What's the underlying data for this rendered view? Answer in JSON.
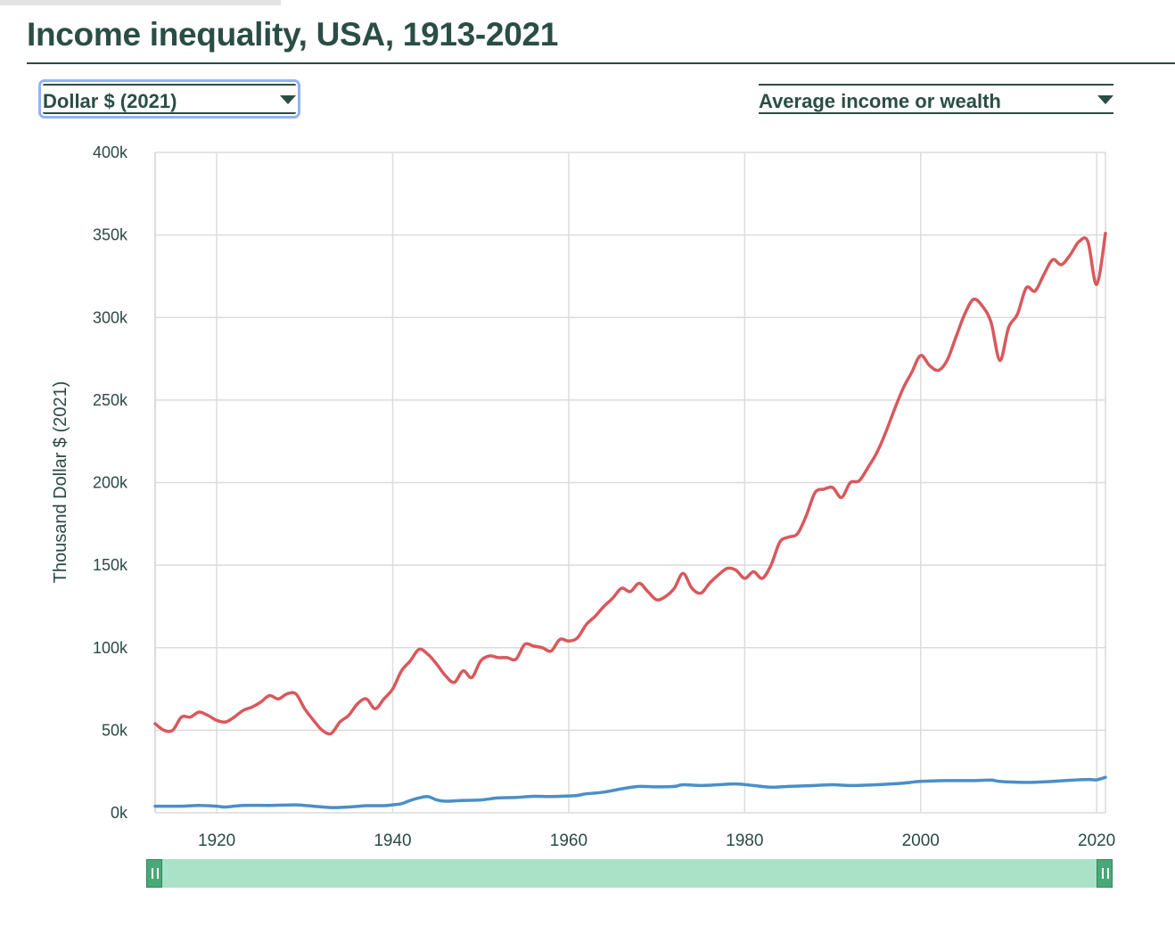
{
  "page": {
    "title": "Income inequality, USA, 1913-2021"
  },
  "controls": {
    "unit_select": {
      "value": "Dollar $ (2021)",
      "icon": "triangle-down-icon"
    },
    "measure_select": {
      "value": "Average income or wealth",
      "icon": "triangle-down-icon"
    }
  },
  "range_slider": {
    "start": 1913,
    "end": 2021
  },
  "chart_data": {
    "type": "line",
    "title": "Income inequality, USA, 1913-2021",
    "xlabel": "",
    "ylabel": "Thousand Dollar $ (2021)",
    "xlim": [
      1913,
      2021
    ],
    "ylim": [
      0,
      400000
    ],
    "x_ticks": [
      1920,
      1940,
      1960,
      1980,
      2000,
      2020
    ],
    "x_tick_labels": [
      "1920",
      "1940",
      "1960",
      "1980",
      "2000",
      "2020"
    ],
    "y_ticks": [
      0,
      50000,
      100000,
      150000,
      200000,
      250000,
      300000,
      350000,
      400000
    ],
    "y_tick_labels": [
      "0k",
      "50k",
      "100k",
      "150k",
      "200k",
      "250k",
      "300k",
      "350k",
      "400k"
    ],
    "grid": true,
    "legend": "none",
    "series": [
      {
        "color": "#d9585c",
        "points": [
          [
            1913,
            54000
          ],
          [
            1914,
            50000
          ],
          [
            1915,
            50000
          ],
          [
            1916,
            58000
          ],
          [
            1917,
            58000
          ],
          [
            1918,
            61000
          ],
          [
            1919,
            59000
          ],
          [
            1920,
            56000
          ],
          [
            1921,
            55000
          ],
          [
            1922,
            58000
          ],
          [
            1923,
            62000
          ],
          [
            1924,
            64000
          ],
          [
            1925,
            67000
          ],
          [
            1926,
            71000
          ],
          [
            1927,
            69000
          ],
          [
            1928,
            72000
          ],
          [
            1929,
            72000
          ],
          [
            1930,
            63000
          ],
          [
            1931,
            56000
          ],
          [
            1932,
            50000
          ],
          [
            1933,
            48000
          ],
          [
            1934,
            55000
          ],
          [
            1935,
            59000
          ],
          [
            1936,
            66000
          ],
          [
            1937,
            69000
          ],
          [
            1938,
            63000
          ],
          [
            1939,
            69000
          ],
          [
            1940,
            75000
          ],
          [
            1941,
            86000
          ],
          [
            1942,
            92000
          ],
          [
            1943,
            99000
          ],
          [
            1944,
            96000
          ],
          [
            1945,
            90000
          ],
          [
            1946,
            83000
          ],
          [
            1947,
            79000
          ],
          [
            1948,
            86000
          ],
          [
            1949,
            82000
          ],
          [
            1950,
            92000
          ],
          [
            1951,
            95000
          ],
          [
            1952,
            94000
          ],
          [
            1953,
            94000
          ],
          [
            1954,
            93000
          ],
          [
            1955,
            102000
          ],
          [
            1956,
            101000
          ],
          [
            1957,
            100000
          ],
          [
            1958,
            98000
          ],
          [
            1959,
            105000
          ],
          [
            1960,
            104000
          ],
          [
            1961,
            106000
          ],
          [
            1962,
            114000
          ],
          [
            1963,
            119000
          ],
          [
            1964,
            125000
          ],
          [
            1965,
            130000
          ],
          [
            1966,
            136000
          ],
          [
            1967,
            134000
          ],
          [
            1968,
            139000
          ],
          [
            1969,
            134000
          ],
          [
            1970,
            129000
          ],
          [
            1971,
            131000
          ],
          [
            1972,
            136000
          ],
          [
            1973,
            145000
          ],
          [
            1974,
            136000
          ],
          [
            1975,
            133000
          ],
          [
            1976,
            139000
          ],
          [
            1977,
            144000
          ],
          [
            1978,
            148000
          ],
          [
            1979,
            147000
          ],
          [
            1980,
            142000
          ],
          [
            1981,
            146000
          ],
          [
            1982,
            142000
          ],
          [
            1983,
            150000
          ],
          [
            1984,
            164000
          ],
          [
            1985,
            167000
          ],
          [
            1986,
            169000
          ],
          [
            1987,
            180000
          ],
          [
            1988,
            194000
          ],
          [
            1989,
            196000
          ],
          [
            1990,
            197000
          ],
          [
            1991,
            191000
          ],
          [
            1992,
            200000
          ],
          [
            1993,
            201000
          ],
          [
            1994,
            209000
          ],
          [
            1995,
            218000
          ],
          [
            1996,
            230000
          ],
          [
            1997,
            244000
          ],
          [
            1998,
            257000
          ],
          [
            1999,
            267000
          ],
          [
            2000,
            277000
          ],
          [
            2001,
            271000
          ],
          [
            2002,
            268000
          ],
          [
            2003,
            274000
          ],
          [
            2004,
            288000
          ],
          [
            2005,
            302000
          ],
          [
            2006,
            311000
          ],
          [
            2007,
            307000
          ],
          [
            2008,
            297000
          ],
          [
            2009,
            274000
          ],
          [
            2010,
            294000
          ],
          [
            2011,
            302000
          ],
          [
            2012,
            318000
          ],
          [
            2013,
            316000
          ],
          [
            2014,
            326000
          ],
          [
            2015,
            335000
          ],
          [
            2016,
            332000
          ],
          [
            2017,
            338000
          ],
          [
            2018,
            346000
          ],
          [
            2019,
            346000
          ],
          [
            2020,
            320000
          ],
          [
            2021,
            351000
          ]
        ]
      },
      {
        "color": "#4a8fc7",
        "points": [
          [
            1913,
            4000
          ],
          [
            1916,
            4000
          ],
          [
            1918,
            4500
          ],
          [
            1920,
            4000
          ],
          [
            1921,
            3500
          ],
          [
            1923,
            4500
          ],
          [
            1926,
            4500
          ],
          [
            1929,
            4800
          ],
          [
            1931,
            4000
          ],
          [
            1933,
            3200
          ],
          [
            1935,
            3500
          ],
          [
            1937,
            4300
          ],
          [
            1939,
            4300
          ],
          [
            1940,
            4800
          ],
          [
            1941,
            5500
          ],
          [
            1942,
            7500
          ],
          [
            1943,
            9000
          ],
          [
            1944,
            9800
          ],
          [
            1945,
            7800
          ],
          [
            1946,
            7000
          ],
          [
            1948,
            7500
          ],
          [
            1950,
            7800
          ],
          [
            1952,
            9000
          ],
          [
            1954,
            9300
          ],
          [
            1956,
            10000
          ],
          [
            1958,
            9800
          ],
          [
            1960,
            10200
          ],
          [
            1961,
            10500
          ],
          [
            1962,
            11500
          ],
          [
            1964,
            12500
          ],
          [
            1966,
            14500
          ],
          [
            1968,
            16000
          ],
          [
            1970,
            15700
          ],
          [
            1972,
            16000
          ],
          [
            1973,
            17000
          ],
          [
            1975,
            16500
          ],
          [
            1977,
            17000
          ],
          [
            1979,
            17500
          ],
          [
            1981,
            16500
          ],
          [
            1983,
            15500
          ],
          [
            1985,
            16000
          ],
          [
            1988,
            16500
          ],
          [
            1990,
            17000
          ],
          [
            1992,
            16500
          ],
          [
            1995,
            17000
          ],
          [
            1998,
            18000
          ],
          [
            2000,
            19000
          ],
          [
            2003,
            19500
          ],
          [
            2006,
            19500
          ],
          [
            2008,
            19800
          ],
          [
            2009,
            19000
          ],
          [
            2011,
            18500
          ],
          [
            2013,
            18500
          ],
          [
            2015,
            19000
          ],
          [
            2017,
            19700
          ],
          [
            2019,
            20200
          ],
          [
            2020,
            20000
          ],
          [
            2021,
            21500
          ]
        ]
      }
    ]
  }
}
